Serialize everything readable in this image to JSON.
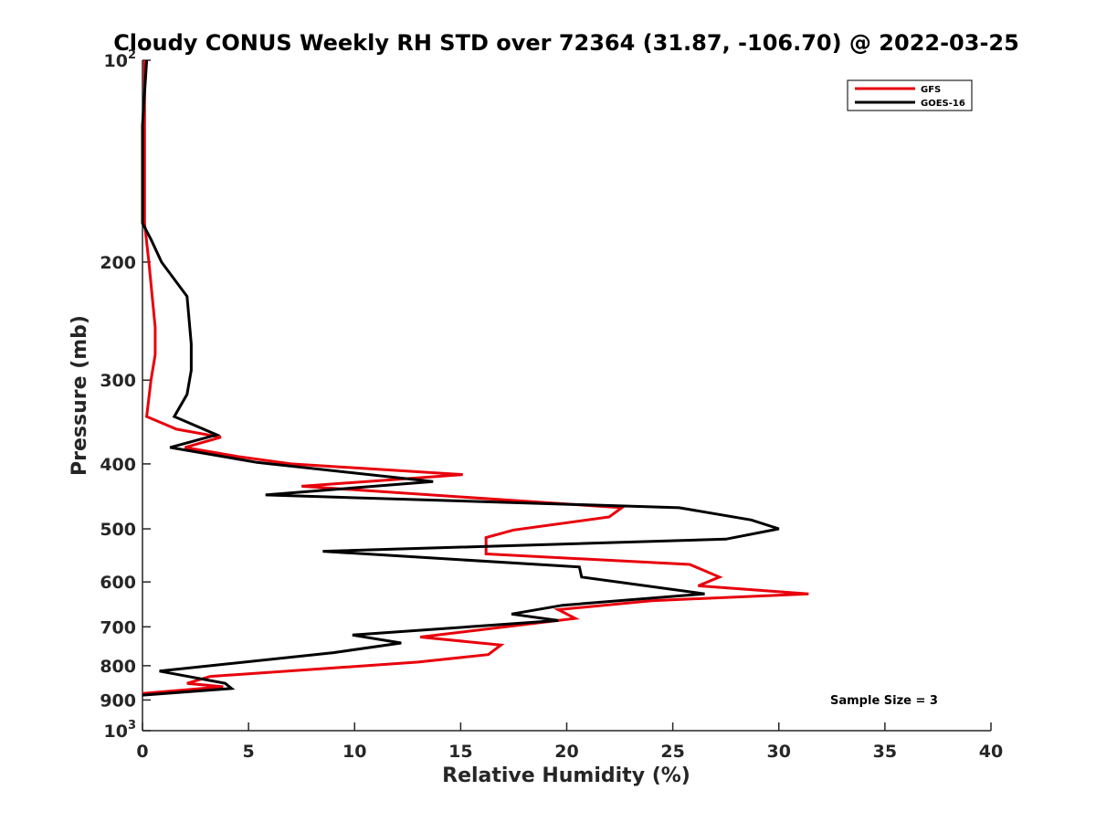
{
  "chart_data": {
    "type": "line",
    "title": "Cloudy CONUS Weekly RH STD over 72364 (31.87, -106.70) @ 2022-03-25",
    "xlabel": "Relative Humidity (%)",
    "ylabel": "Pressure (mb)",
    "xlim": [
      0,
      40
    ],
    "ylim": [
      100,
      1000
    ],
    "y_scale": "log",
    "y_reversed": true,
    "x_ticks": [
      "0",
      "5",
      "10",
      "15",
      "20",
      "25",
      "30",
      "35",
      "40"
    ],
    "y_ticks": [
      {
        "value": 100,
        "label": "10",
        "sup": "2"
      },
      {
        "value": 200,
        "label": "200"
      },
      {
        "value": 300,
        "label": "300"
      },
      {
        "value": 400,
        "label": "400"
      },
      {
        "value": 500,
        "label": "500"
      },
      {
        "value": 600,
        "label": "600"
      },
      {
        "value": 700,
        "label": "700"
      },
      {
        "value": 800,
        "label": "800"
      },
      {
        "value": 900,
        "label": "900"
      },
      {
        "value": 1000,
        "label": "10",
        "sup": "3"
      }
    ],
    "grid": false,
    "legend_position": "top-right",
    "annotation": "Sample Size = 3",
    "series": [
      {
        "name": "GFS",
        "color": "#e8000b",
        "points": [
          [
            0.1,
            100
          ],
          [
            0.1,
            125
          ],
          [
            0.1,
            150
          ],
          [
            0.1,
            175
          ],
          [
            0.3,
            200
          ],
          [
            0.6,
            250
          ],
          [
            0.6,
            275
          ],
          [
            0.4,
            300
          ],
          [
            0.2,
            340
          ],
          [
            1.6,
            355
          ],
          [
            3.7,
            365
          ],
          [
            2.0,
            378
          ],
          [
            4.5,
            390
          ],
          [
            7.0,
            400
          ],
          [
            15.1,
            415
          ],
          [
            7.5,
            432
          ],
          [
            22.6,
            465
          ],
          [
            22.0,
            480
          ],
          [
            17.5,
            502
          ],
          [
            16.2,
            515
          ],
          [
            16.2,
            545
          ],
          [
            25.8,
            565
          ],
          [
            27.2,
            590
          ],
          [
            26.2,
            608
          ],
          [
            31.4,
            625
          ],
          [
            24.0,
            640
          ],
          [
            19.6,
            660
          ],
          [
            20.4,
            680
          ],
          [
            13.1,
            725
          ],
          [
            16.9,
            745
          ],
          [
            16.3,
            770
          ],
          [
            13.0,
            790
          ],
          [
            3.2,
            830
          ],
          [
            2.1,
            850
          ],
          [
            3.8,
            860
          ],
          [
            0.0,
            880
          ]
        ]
      },
      {
        "name": "GOES-16",
        "color": "#000000",
        "points": [
          [
            0.2,
            100
          ],
          [
            0.0,
            125
          ],
          [
            0.0,
            150
          ],
          [
            0.0,
            175
          ],
          [
            0.4,
            185
          ],
          [
            0.9,
            200
          ],
          [
            2.1,
            225
          ],
          [
            2.3,
            265
          ],
          [
            2.3,
            290
          ],
          [
            2.1,
            315
          ],
          [
            1.5,
            340
          ],
          [
            3.5,
            362
          ],
          [
            1.3,
            378
          ],
          [
            5.4,
            398
          ],
          [
            13.7,
            425
          ],
          [
            5.8,
            445
          ],
          [
            25.3,
            465
          ],
          [
            28.7,
            485
          ],
          [
            30.0,
            500
          ],
          [
            27.5,
            518
          ],
          [
            8.5,
            540
          ],
          [
            20.6,
            570
          ],
          [
            20.7,
            590
          ],
          [
            26.5,
            625
          ],
          [
            19.8,
            650
          ],
          [
            17.4,
            670
          ],
          [
            19.6,
            685
          ],
          [
            9.9,
            720
          ],
          [
            12.2,
            740
          ],
          [
            9.0,
            765
          ],
          [
            0.8,
            815
          ],
          [
            3.9,
            850
          ],
          [
            4.2,
            865
          ],
          [
            0.0,
            885
          ]
        ]
      }
    ]
  }
}
